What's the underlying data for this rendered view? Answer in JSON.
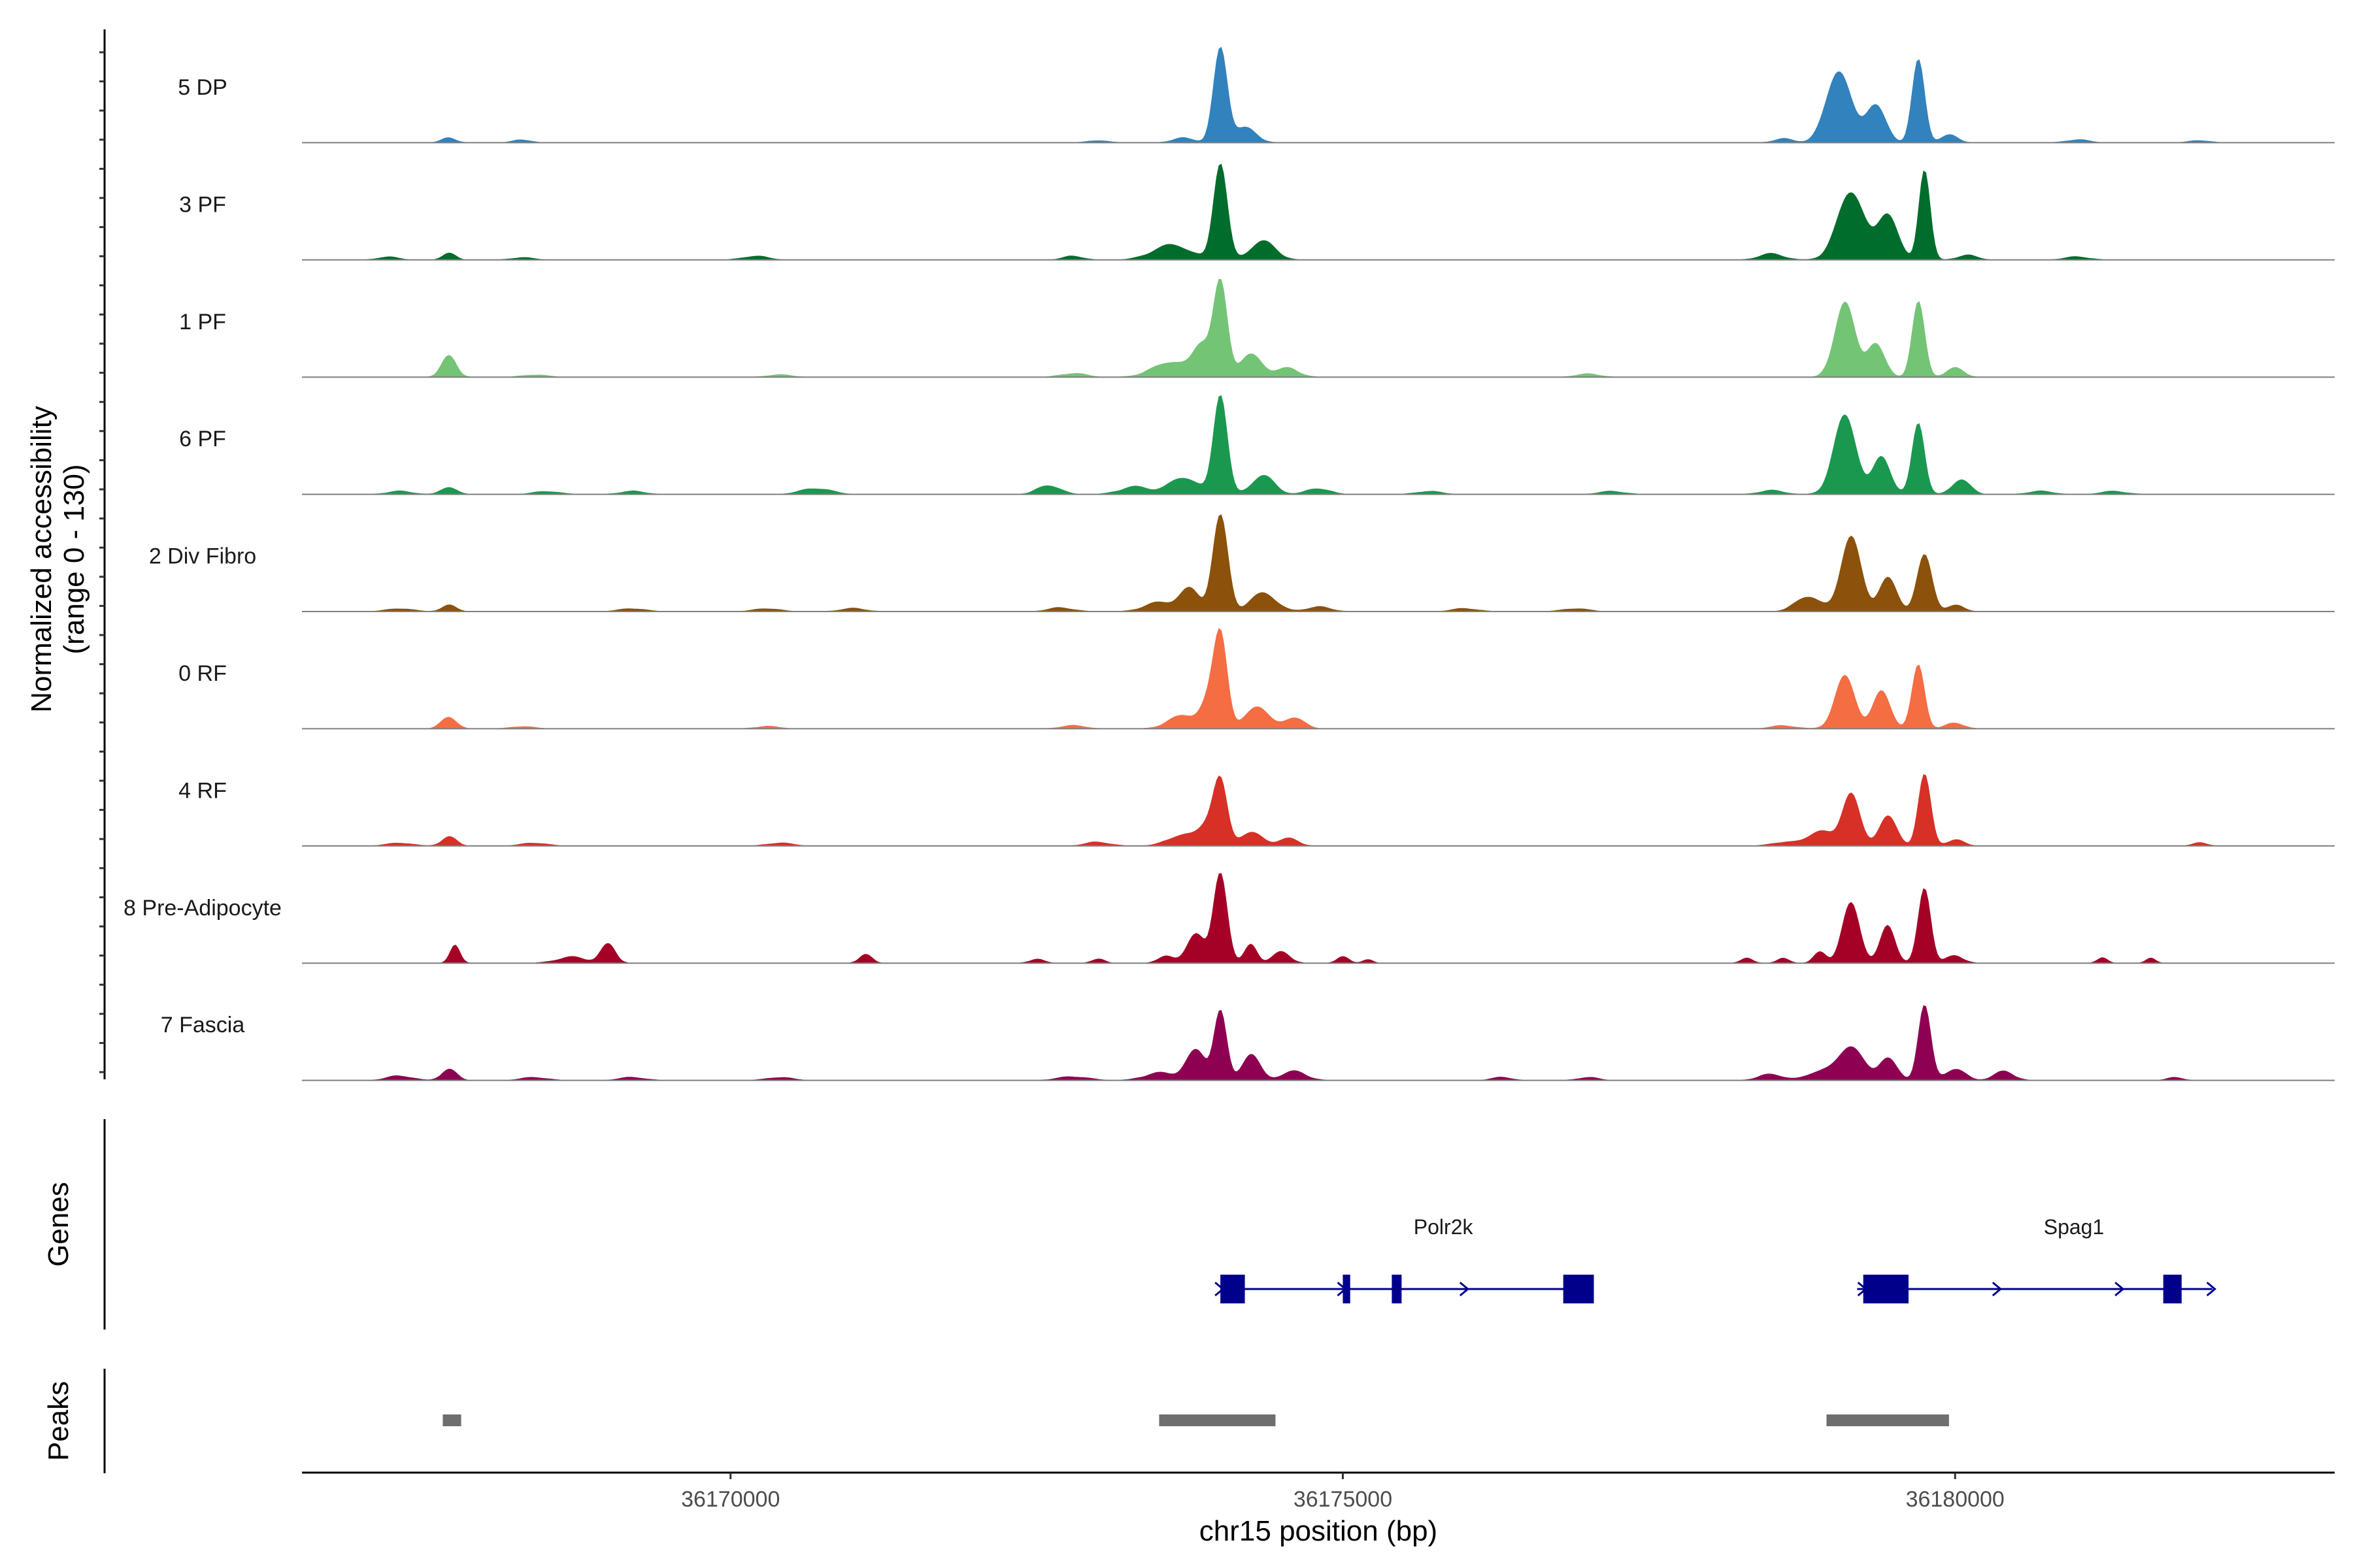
{
  "chart_data": {
    "type": "area",
    "title": "",
    "ylabel_line1": "Normalized accessibility",
    "ylabel_line2": "(range 0 - 130)",
    "yrange": [
      0,
      130
    ],
    "xlabel": "chr15 position (bp)",
    "xlim": [
      36166500,
      36183100
    ],
    "x_ticks": [
      {
        "value": 36170000,
        "label": "36170000"
      },
      {
        "value": 36175000,
        "label": "36175000"
      },
      {
        "value": 36180000,
        "label": "36180000"
      }
    ],
    "tracks": [
      {
        "name": "5 DP",
        "color": "#3182BD",
        "peaks": [
          [
            36167700,
            6,
            60
          ],
          [
            36168300,
            4,
            70
          ],
          [
            36173000,
            3,
            80
          ],
          [
            36173700,
            6,
            90
          ],
          [
            36174000,
            125,
            55
          ],
          [
            36174200,
            20,
            90
          ],
          [
            36178600,
            5,
            80
          ],
          [
            36179050,
            95,
            100
          ],
          [
            36179350,
            50,
            80
          ],
          [
            36179700,
            110,
            50
          ],
          [
            36179950,
            10,
            70
          ],
          [
            36181000,
            4,
            90
          ],
          [
            36182000,
            3,
            80
          ]
        ]
      },
      {
        "name": "3 PF",
        "color": "#006D2C",
        "peaks": [
          [
            36167200,
            4,
            80
          ],
          [
            36167700,
            10,
            50
          ],
          [
            36168300,
            3,
            90
          ],
          [
            36170200,
            5,
            100
          ],
          [
            36172800,
            5,
            80
          ],
          [
            36173600,
            20,
            150
          ],
          [
            36174000,
            128,
            55
          ],
          [
            36174350,
            25,
            100
          ],
          [
            36178500,
            8,
            100
          ],
          [
            36179150,
            90,
            110
          ],
          [
            36179450,
            60,
            80
          ],
          [
            36179750,
            120,
            45
          ],
          [
            36180100,
            6,
            80
          ],
          [
            36181000,
            4,
            100
          ]
        ]
      },
      {
        "name": "1 PF",
        "color": "#74C476",
        "peaks": [
          [
            36167700,
            28,
            60
          ],
          [
            36168400,
            3,
            100
          ],
          [
            36170400,
            3,
            100
          ],
          [
            36172800,
            5,
            100
          ],
          [
            36173600,
            20,
            150
          ],
          [
            36173850,
            40,
            70
          ],
          [
            36174000,
            125,
            55
          ],
          [
            36174250,
            30,
            90
          ],
          [
            36174550,
            12,
            90
          ],
          [
            36177000,
            4,
            100
          ],
          [
            36179100,
            100,
            80
          ],
          [
            36179350,
            45,
            70
          ],
          [
            36179700,
            100,
            50
          ],
          [
            36180000,
            12,
            70
          ]
        ]
      },
      {
        "name": "6 PF",
        "color": "#1A9850",
        "peaks": [
          [
            36167300,
            4,
            100
          ],
          [
            36167700,
            10,
            60
          ],
          [
            36168500,
            4,
            100
          ],
          [
            36169200,
            4,
            100
          ],
          [
            36170700,
            8,
            120
          ],
          [
            36172600,
            12,
            90
          ],
          [
            36173300,
            10,
            120
          ],
          [
            36173700,
            22,
            120
          ],
          [
            36174000,
            132,
            55
          ],
          [
            36174350,
            25,
            90
          ],
          [
            36174800,
            8,
            90
          ],
          [
            36175700,
            4,
            100
          ],
          [
            36177200,
            4,
            100
          ],
          [
            36178500,
            5,
            100
          ],
          [
            36179100,
            105,
            90
          ],
          [
            36179400,
            50,
            70
          ],
          [
            36179700,
            95,
            50
          ],
          [
            36180050,
            20,
            70
          ],
          [
            36180700,
            4,
            100
          ],
          [
            36181300,
            4,
            100
          ]
        ]
      },
      {
        "name": "2 Div Fibro",
        "color": "#8C510A",
        "peaks": [
          [
            36167300,
            4,
            100
          ],
          [
            36167700,
            8,
            60
          ],
          [
            36169200,
            4,
            100
          ],
          [
            36170300,
            4,
            100
          ],
          [
            36171000,
            4,
            100
          ],
          [
            36172700,
            5,
            100
          ],
          [
            36173500,
            12,
            120
          ],
          [
            36173750,
            30,
            80
          ],
          [
            36174000,
            128,
            60
          ],
          [
            36174350,
            25,
            100
          ],
          [
            36174800,
            6,
            100
          ],
          [
            36176000,
            4,
            100
          ],
          [
            36176900,
            4,
            100
          ],
          [
            36178800,
            20,
            100
          ],
          [
            36179150,
            100,
            80
          ],
          [
            36179450,
            45,
            70
          ],
          [
            36179750,
            75,
            60
          ],
          [
            36180000,
            8,
            70
          ]
        ]
      },
      {
        "name": "0 RF",
        "color": "#F46D43",
        "peaks": [
          [
            36167700,
            16,
            60
          ],
          [
            36168300,
            3,
            90
          ],
          [
            36170300,
            3,
            100
          ],
          [
            36172800,
            4,
            100
          ],
          [
            36173700,
            18,
            120
          ],
          [
            36173900,
            30,
            60
          ],
          [
            36174000,
            125,
            55
          ],
          [
            36174300,
            30,
            90
          ],
          [
            36174600,
            15,
            80
          ],
          [
            36178600,
            4,
            100
          ],
          [
            36179100,
            70,
            80
          ],
          [
            36179400,
            50,
            70
          ],
          [
            36179700,
            85,
            50
          ],
          [
            36180000,
            8,
            70
          ]
        ]
      },
      {
        "name": "4 RF",
        "color": "#D73027",
        "peaks": [
          [
            36167300,
            4,
            100
          ],
          [
            36167700,
            12,
            60
          ],
          [
            36168400,
            4,
            100
          ],
          [
            36170400,
            4,
            100
          ],
          [
            36173000,
            5,
            100
          ],
          [
            36173700,
            15,
            120
          ],
          [
            36173900,
            25,
            70
          ],
          [
            36174000,
            82,
            55
          ],
          [
            36174250,
            18,
            90
          ],
          [
            36174550,
            10,
            80
          ],
          [
            36178600,
            5,
            100
          ],
          [
            36178900,
            20,
            100
          ],
          [
            36179150,
            70,
            70
          ],
          [
            36179450,
            40,
            70
          ],
          [
            36179750,
            95,
            50
          ],
          [
            36180000,
            8,
            70
          ],
          [
            36182000,
            4,
            60
          ]
        ]
      },
      {
        "name": "8 Pre-Adipocyte",
        "color": "#A50026",
        "peaks": [
          [
            36167750,
            25,
            40
          ],
          [
            36168700,
            8,
            120
          ],
          [
            36169000,
            25,
            60
          ],
          [
            36171100,
            12,
            50
          ],
          [
            36172500,
            5,
            60
          ],
          [
            36173000,
            6,
            50
          ],
          [
            36173550,
            10,
            60
          ],
          [
            36173800,
            40,
            70
          ],
          [
            36174000,
            120,
            55
          ],
          [
            36174250,
            25,
            50
          ],
          [
            36174500,
            15,
            70
          ],
          [
            36175000,
            8,
            50
          ],
          [
            36175200,
            5,
            40
          ],
          [
            36178300,
            6,
            50
          ],
          [
            36178600,
            6,
            50
          ],
          [
            36178900,
            15,
            50
          ],
          [
            36179150,
            80,
            70
          ],
          [
            36179450,
            50,
            60
          ],
          [
            36179750,
            100,
            50
          ],
          [
            36180000,
            10,
            70
          ],
          [
            36181200,
            8,
            40
          ],
          [
            36181600,
            6,
            40
          ]
        ]
      },
      {
        "name": "7 Fascia",
        "color": "#8E0152",
        "peaks": [
          [
            36167300,
            6,
            100
          ],
          [
            36167700,
            15,
            60
          ],
          [
            36168400,
            4,
            100
          ],
          [
            36169200,
            4,
            100
          ],
          [
            36170400,
            4,
            100
          ],
          [
            36172800,
            5,
            120
          ],
          [
            36173500,
            10,
            120
          ],
          [
            36173800,
            40,
            80
          ],
          [
            36174000,
            92,
            50
          ],
          [
            36174250,
            35,
            70
          ],
          [
            36174600,
            12,
            100
          ],
          [
            36176300,
            4,
            80
          ],
          [
            36177000,
            4,
            80
          ],
          [
            36178500,
            8,
            100
          ],
          [
            36178900,
            12,
            100
          ],
          [
            36179150,
            45,
            100
          ],
          [
            36179450,
            30,
            70
          ],
          [
            36179750,
            100,
            50
          ],
          [
            36180000,
            15,
            80
          ],
          [
            36180400,
            12,
            80
          ],
          [
            36181800,
            4,
            60
          ]
        ]
      }
    ],
    "genes": [
      {
        "name": "Polr2k",
        "start": 36174000,
        "end": 36177000,
        "strand": "+",
        "exons": [
          [
            36174000,
            36174200
          ],
          [
            36175000,
            36175060
          ],
          [
            36175400,
            36175480
          ],
          [
            36176800,
            36177050
          ]
        ],
        "arrows": [
          36174000,
          36175000,
          36176000
        ]
      },
      {
        "name": "Spag1",
        "start": 36179200,
        "end": 36182100,
        "strand": "+",
        "exons": [
          [
            36179250,
            36179620
          ],
          [
            36181700,
            36181850
          ]
        ],
        "arrows": [
          36179250,
          36180350,
          36181350,
          36182100
        ]
      }
    ],
    "peaks_track": [
      [
        36167650,
        36167800
      ],
      [
        36173500,
        36174450
      ],
      [
        36178950,
        36179950
      ]
    ],
    "panel_labels": {
      "genes": "Genes",
      "peaks": "Peaks"
    }
  }
}
